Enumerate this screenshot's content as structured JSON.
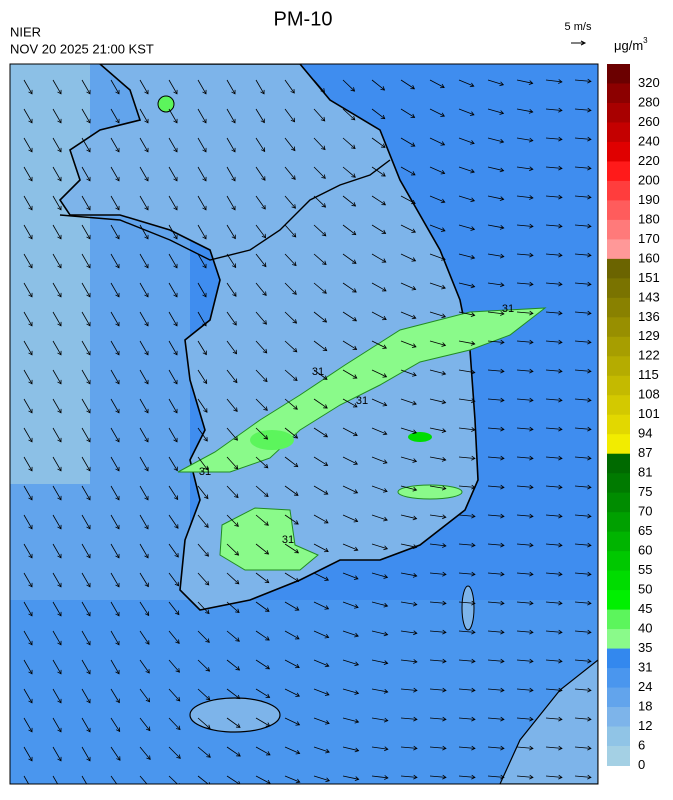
{
  "header": {
    "title": "PM-10",
    "agency": "NIER",
    "datetime": "NOV 20 2025 21:00 KST",
    "wind_scale": "5 m/s"
  },
  "legend": {
    "unit": {
      "text": "μg/m",
      "superscript": "3"
    },
    "levels": [
      {
        "value": 320,
        "color": "#6b0000"
      },
      {
        "value": 280,
        "color": "#8c0000"
      },
      {
        "value": 260,
        "color": "#a80000"
      },
      {
        "value": 240,
        "color": "#c40000"
      },
      {
        "value": 220,
        "color": "#e00000"
      },
      {
        "value": 200,
        "color": "#ff1a1a"
      },
      {
        "value": 190,
        "color": "#ff3d3d"
      },
      {
        "value": 180,
        "color": "#ff5c5c"
      },
      {
        "value": 170,
        "color": "#ff7a7a"
      },
      {
        "value": 160,
        "color": "#ff9898"
      },
      {
        "value": 151,
        "color": "#6b6400"
      },
      {
        "value": 143,
        "color": "#7a7300"
      },
      {
        "value": 136,
        "color": "#898100"
      },
      {
        "value": 129,
        "color": "#988f00"
      },
      {
        "value": 122,
        "color": "#a79e00"
      },
      {
        "value": 115,
        "color": "#b5ac00"
      },
      {
        "value": 108,
        "color": "#c4ba00"
      },
      {
        "value": 101,
        "color": "#d3c900"
      },
      {
        "value": 94,
        "color": "#e2d800"
      },
      {
        "value": 87,
        "color": "#f2ec00"
      },
      {
        "value": 81,
        "color": "#006a00"
      },
      {
        "value": 75,
        "color": "#007a00"
      },
      {
        "value": 70,
        "color": "#008c00"
      },
      {
        "value": 65,
        "color": "#00a000"
      },
      {
        "value": 60,
        "color": "#00b400"
      },
      {
        "value": 55,
        "color": "#00c800"
      },
      {
        "value": 50,
        "color": "#00dc00"
      },
      {
        "value": 45,
        "color": "#00f000"
      },
      {
        "value": 40,
        "color": "#5cf55c"
      },
      {
        "value": 35,
        "color": "#8afa8a"
      },
      {
        "value": 31,
        "color": "#3388ee"
      },
      {
        "value": 24,
        "color": "#4a96ee"
      },
      {
        "value": 18,
        "color": "#62a4ec"
      },
      {
        "value": 12,
        "color": "#7db4ea"
      },
      {
        "value": 6,
        "color": "#90c4e6"
      },
      {
        "value": 0,
        "color": "#a4d0e4"
      }
    ]
  },
  "map": {
    "contour_labels": [
      "31",
      "31",
      "31",
      "31",
      "31"
    ]
  }
}
